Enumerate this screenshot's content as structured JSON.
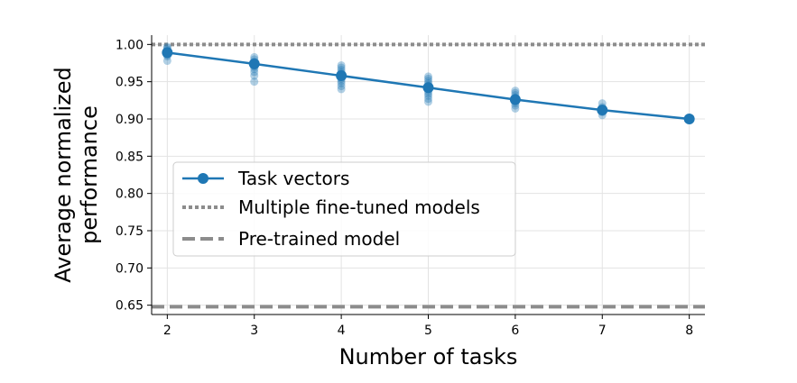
{
  "chart_data": {
    "type": "line",
    "xlabel": "Number of tasks",
    "ylabel_lines": [
      "Average normalized",
      "performance"
    ],
    "xlim": [
      1.82,
      8.18
    ],
    "ylim": [
      0.6375,
      1.0125
    ],
    "xticks": [
      2,
      3,
      4,
      5,
      6,
      7,
      8
    ],
    "yticks": [
      0.65,
      0.7,
      0.75,
      0.8,
      0.85,
      0.9,
      0.95,
      1.0
    ],
    "ytick_labels": [
      "0.65",
      "0.70",
      "0.75",
      "0.80",
      "0.85",
      "0.90",
      "0.95",
      "1.00"
    ],
    "grid": true,
    "legend_position": "center-left",
    "series": [
      {
        "name": "Task vectors",
        "style": "line-marker",
        "color": "#1f77b4",
        "x": [
          2,
          3,
          4,
          5,
          6,
          7,
          8
        ],
        "y": [
          0.989,
          0.974,
          0.958,
          0.942,
          0.926,
          0.912,
          0.9
        ]
      },
      {
        "name": "Multiple fine-tuned models",
        "style": "dotted",
        "color": "#8c8c8c",
        "y": 1.0
      },
      {
        "name": "Pre-trained model",
        "style": "dashed",
        "color": "#8c8c8c",
        "y": 0.648
      }
    ],
    "scatter_points": {
      "color": "#1f77b4",
      "x": [
        2,
        2,
        2,
        2,
        2,
        2,
        2,
        2,
        3,
        3,
        3,
        3,
        3,
        3,
        3,
        3,
        3,
        3,
        4,
        4,
        4,
        4,
        4,
        4,
        4,
        4,
        4,
        4,
        4,
        4,
        5,
        5,
        5,
        5,
        5,
        5,
        5,
        5,
        5,
        5,
        5,
        5,
        6,
        6,
        6,
        6,
        6,
        6,
        6,
        6,
        6,
        7,
        7,
        7,
        7,
        7
      ],
      "y": [
        0.978,
        0.984,
        0.986,
        0.989,
        0.991,
        0.993,
        0.995,
        0.997,
        0.95,
        0.958,
        0.963,
        0.967,
        0.97,
        0.972,
        0.975,
        0.977,
        0.98,
        0.983,
        0.94,
        0.944,
        0.948,
        0.951,
        0.954,
        0.957,
        0.959,
        0.961,
        0.963,
        0.966,
        0.969,
        0.972,
        0.923,
        0.927,
        0.931,
        0.934,
        0.937,
        0.94,
        0.943,
        0.945,
        0.948,
        0.951,
        0.954,
        0.957,
        0.914,
        0.918,
        0.921,
        0.924,
        0.926,
        0.929,
        0.932,
        0.935,
        0.938,
        0.905,
        0.909,
        0.912,
        0.916,
        0.921
      ]
    }
  }
}
